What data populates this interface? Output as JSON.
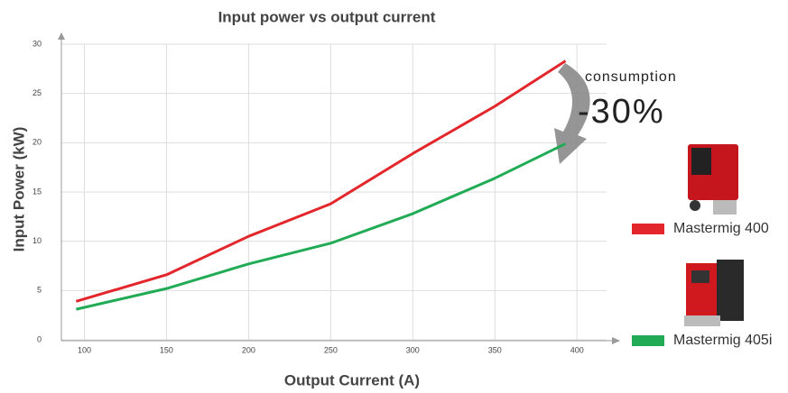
{
  "chart_data": {
    "type": "line",
    "title": "Input power vs output current",
    "x_label": "Output Current (A)",
    "y_label": "Input Power (kW)",
    "xlim": [
      86,
      418
    ],
    "xticks": [
      100,
      150,
      200,
      250,
      300,
      350,
      400
    ],
    "ylim": [
      0,
      30
    ],
    "yticks": [
      0,
      5,
      10,
      15,
      20,
      25,
      30
    ],
    "grid": true,
    "x": [
      95,
      150,
      200,
      250,
      300,
      350,
      393
    ],
    "series": [
      {
        "name": "Mastermig 400",
        "color": "#e3262b",
        "values": [
          3.9,
          6.6,
          10.5,
          13.8,
          18.9,
          23.7,
          28.3
        ]
      },
      {
        "name": "Mastermig 405i",
        "color": "#21ab55",
        "values": [
          3.1,
          5.2,
          7.7,
          9.8,
          12.8,
          16.4,
          19.9
        ]
      }
    ],
    "annotations": [
      "consumption",
      "-30%"
    ]
  }
}
